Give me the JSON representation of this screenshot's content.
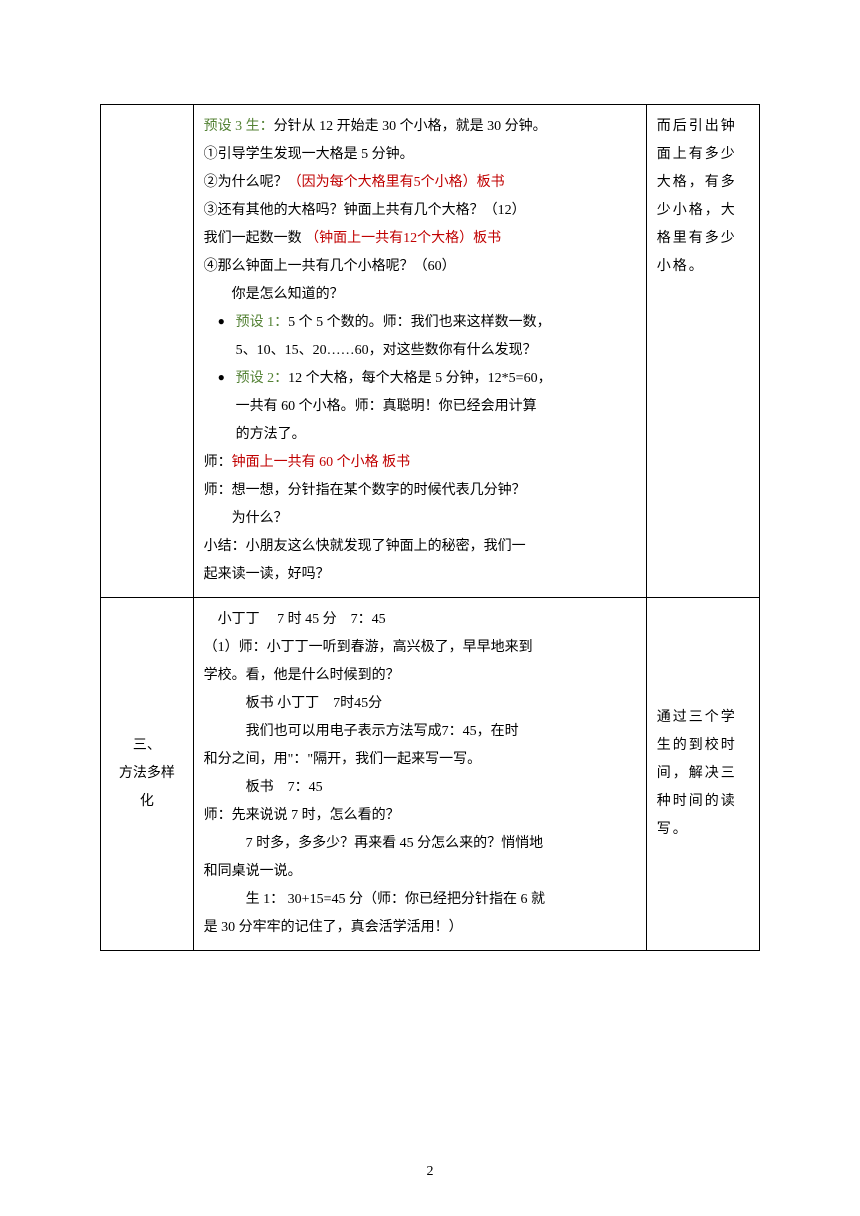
{
  "row1": {
    "section": "",
    "note": "而后引出钟面上有多少大格，有多少小格，大格里有多少小格。",
    "main": {
      "line1_pre": "预设 3 生：",
      "line1": "分针从 12 开始走 30 个小格，就是 30 分钟。",
      "line2": "①引导学生发现一大格是 5 分钟。",
      "line3": "②为什么呢？",
      "line3_red": "（因为每个大格里有5个小格）板书",
      "line4": "③还有其他的大格吗？钟面上共有几个大格？（12）",
      "line5": "我们一起数一数 ",
      "line5_red": "（钟面上一共有12个大格）板书",
      "line6": "④那么钟面上一共有几个小格呢？（60）",
      "line7": "你是怎么知道的？",
      "bullet1_pre": "预设 1：",
      "bullet1_a": "5 个 5 个数的。师：我们也来这样数一数，",
      "bullet1_b": "5、10、15、20……60，对这些数你有什么发现？",
      "bullet2_pre": "预设 2：",
      "bullet2_a": "12 个大格，每个大格是 5 分钟，12*5=60，",
      "bullet2_b": "一共有 60 个小格。师：真聪明！你已经会用计算",
      "bullet2_c": "的方法了。",
      "line8_pre": "师：",
      "line8_red": "钟面上一共有 60 个小格 板书",
      "line9": "师：想一想，分针指在某个数字的时候代表几分钟？",
      "line10": "为什么？",
      "line11": "小结：小朋友这么快就发现了钟面上的秘密，我们一",
      "line12": "起来读一读，好吗？"
    }
  },
  "row2": {
    "section_a": "三、",
    "section_b": "方法多样",
    "section_c": "化",
    "note": "通过三个学生的到校时间，解决三种时间的读写。",
    "main": {
      "line1": "小丁丁　 7 时 45 分　7：45",
      "line2": "（1）师：小丁丁一听到春游，高兴极了，早早地来到",
      "line3": "学校。看，他是什么时候到的？",
      "line4": "板书 小丁丁　7时45分",
      "line5": "我们也可以用电子表示方法写成7：45，在时",
      "line6": "和分之间，用\"：\"隔开，我们一起来写一写。",
      "line7": "板书　7：45",
      "line8": "师：先来说说 7 时，怎么看的？",
      "line9": "7 时多，多多少？再来看 45 分怎么来的？悄悄地",
      "line10": "和同桌说一说。",
      "line11": "生 1：  30+15=45 分（师：你已经把分针指在 6 就",
      "line12": "是 30 分牢牢的记住了，真会活学活用！）"
    }
  },
  "pageNumber": "2"
}
